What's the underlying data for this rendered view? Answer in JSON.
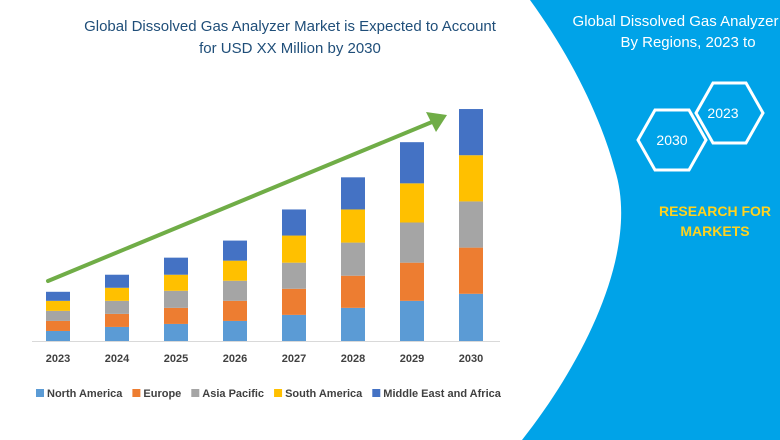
{
  "chart_data": {
    "type": "bar",
    "stacked": true,
    "title_lines": [
      "Global Dissolved Gas Analyzer Market is Expected to Account",
      "for USD XX Million by 2030"
    ],
    "categories": [
      "2023",
      "2024",
      "2025",
      "2026",
      "2027",
      "2028",
      "2029",
      "2030"
    ],
    "series": [
      {
        "name": "North America",
        "color": "#5b9bd5",
        "values": [
          10,
          14,
          17,
          20,
          26,
          33,
          40,
          47
        ]
      },
      {
        "name": "Europe",
        "color": "#ed7d31",
        "values": [
          10,
          13,
          16,
          20,
          26,
          32,
          38,
          46
        ]
      },
      {
        "name": "Asia Pacific",
        "color": "#a5a5a5",
        "values": [
          10,
          13,
          17,
          20,
          26,
          33,
          40,
          46
        ]
      },
      {
        "name": "South America",
        "color": "#ffc000",
        "values": [
          10,
          13,
          16,
          20,
          27,
          33,
          39,
          46
        ]
      },
      {
        "name": "Middle East and Africa",
        "color": "#4472c4",
        "values": [
          9,
          13,
          17,
          20,
          26,
          32,
          41,
          46
        ]
      }
    ],
    "ylim": [
      0,
      240
    ],
    "grid": false,
    "legend_position": "bottom",
    "trend_arrow_color": "#70ad47"
  },
  "right_panel": {
    "title_lines": [
      "Global Dissolved Gas Analyzer Ma",
      "By Regions, 2023 to"
    ],
    "hex_labels": [
      "2023",
      "2030"
    ],
    "brand_lines": [
      "RESEARCH FOR",
      "MARKETS"
    ],
    "colors": {
      "panel": "#00a3e8",
      "brand": "#ffd21f"
    }
  }
}
